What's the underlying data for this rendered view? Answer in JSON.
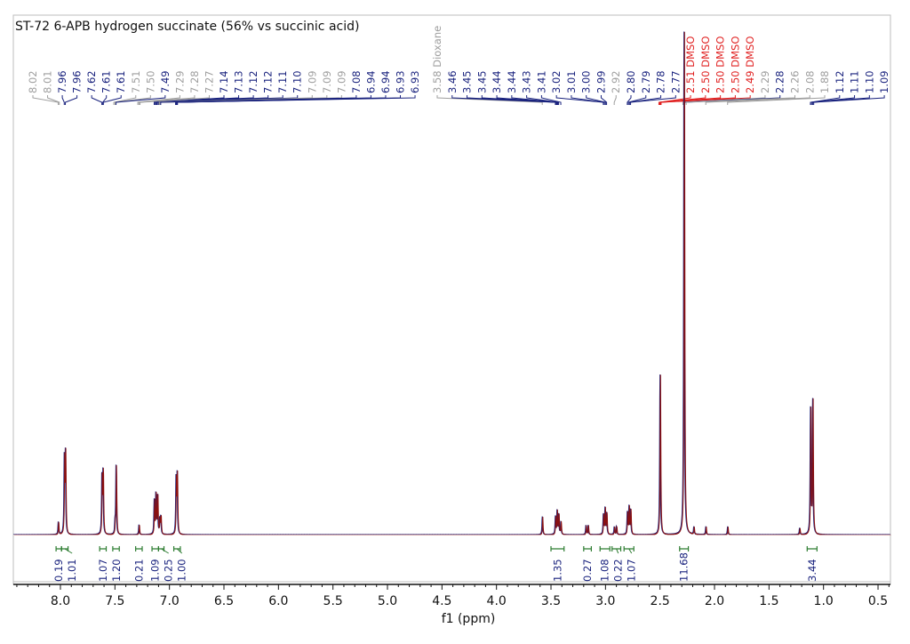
{
  "chart_data": {
    "type": "line",
    "title": "ST-72 6-APB hydrogen succinate (56% vs succinic acid)",
    "xlabel": "f1 (ppm)",
    "ylabel": "",
    "xlim": [
      8.43,
      0.36
    ],
    "x_reversed": true,
    "x_ticks": [
      "8.0",
      "7.5",
      "7.0",
      "6.5",
      "6.0",
      "5.5",
      "5.0",
      "4.5",
      "4.0",
      "3.5",
      "3.0",
      "2.5",
      "2.0",
      "1.5",
      "1.0",
      "0.5"
    ],
    "grid": false,
    "colors": {
      "spectrum": "#8b1010",
      "overlay": "#1a237e",
      "peak_label": "#1a237e",
      "peak_label_minor": "#9e9e9e",
      "solvent_label": "#e02020",
      "integral": "#2e7d32"
    },
    "peak_labels": [
      {
        "text": "8.02",
        "ppm": 8.02,
        "kind": "minor"
      },
      {
        "text": "8.01",
        "ppm": 8.01,
        "kind": "minor"
      },
      {
        "text": "7.96",
        "ppm": 7.965,
        "kind": "main"
      },
      {
        "text": "7.96",
        "ppm": 7.955,
        "kind": "main"
      },
      {
        "text": "7.62",
        "ppm": 7.62,
        "kind": "main"
      },
      {
        "text": "7.61",
        "ppm": 7.612,
        "kind": "main"
      },
      {
        "text": "7.61",
        "ppm": 7.606,
        "kind": "main"
      },
      {
        "text": "7.51",
        "ppm": 7.51,
        "kind": "minor"
      },
      {
        "text": "7.50",
        "ppm": 7.5,
        "kind": "minor"
      },
      {
        "text": "7.49",
        "ppm": 7.49,
        "kind": "main"
      },
      {
        "text": "7.29",
        "ppm": 7.29,
        "kind": "minor"
      },
      {
        "text": "7.28",
        "ppm": 7.28,
        "kind": "minor"
      },
      {
        "text": "7.27",
        "ppm": 7.27,
        "kind": "minor"
      },
      {
        "text": "7.14",
        "ppm": 7.14,
        "kind": "main"
      },
      {
        "text": "7.13",
        "ppm": 7.13,
        "kind": "main"
      },
      {
        "text": "7.12",
        "ppm": 7.123,
        "kind": "main"
      },
      {
        "text": "7.12",
        "ppm": 7.117,
        "kind": "main"
      },
      {
        "text": "7.11",
        "ppm": 7.11,
        "kind": "main"
      },
      {
        "text": "7.10",
        "ppm": 7.1,
        "kind": "main"
      },
      {
        "text": "7.09",
        "ppm": 7.094,
        "kind": "minor"
      },
      {
        "text": "7.09",
        "ppm": 7.09,
        "kind": "minor"
      },
      {
        "text": "7.09",
        "ppm": 7.086,
        "kind": "minor"
      },
      {
        "text": "7.08",
        "ppm": 7.08,
        "kind": "main"
      },
      {
        "text": "6.94",
        "ppm": 6.944,
        "kind": "main"
      },
      {
        "text": "6.94",
        "ppm": 6.938,
        "kind": "main"
      },
      {
        "text": "6.93",
        "ppm": 6.932,
        "kind": "main"
      },
      {
        "text": "6.93",
        "ppm": 6.926,
        "kind": "main"
      },
      {
        "text": "3.58 Dioxane",
        "ppm": 3.58,
        "kind": "minor"
      },
      {
        "text": "3.46",
        "ppm": 3.46,
        "kind": "main"
      },
      {
        "text": "3.45",
        "ppm": 3.453,
        "kind": "main"
      },
      {
        "text": "3.45",
        "ppm": 3.447,
        "kind": "main"
      },
      {
        "text": "3.44",
        "ppm": 3.443,
        "kind": "main"
      },
      {
        "text": "3.44",
        "ppm": 3.437,
        "kind": "main"
      },
      {
        "text": "3.43",
        "ppm": 3.43,
        "kind": "main"
      },
      {
        "text": "3.41",
        "ppm": 3.41,
        "kind": "main"
      },
      {
        "text": "3.02",
        "ppm": 3.02,
        "kind": "main"
      },
      {
        "text": "3.01",
        "ppm": 3.01,
        "kind": "main"
      },
      {
        "text": "3.00",
        "ppm": 3.0,
        "kind": "main"
      },
      {
        "text": "2.99",
        "ppm": 2.99,
        "kind": "main"
      },
      {
        "text": "2.92",
        "ppm": 2.92,
        "kind": "minor"
      },
      {
        "text": "2.80",
        "ppm": 2.8,
        "kind": "main"
      },
      {
        "text": "2.79",
        "ppm": 2.79,
        "kind": "main"
      },
      {
        "text": "2.78",
        "ppm": 2.78,
        "kind": "main"
      },
      {
        "text": "2.77",
        "ppm": 2.77,
        "kind": "main"
      },
      {
        "text": "2.51 DMSO",
        "ppm": 2.51,
        "kind": "solvent"
      },
      {
        "text": "2.50 DMSO",
        "ppm": 2.503,
        "kind": "solvent"
      },
      {
        "text": "2.50 DMSO",
        "ppm": 2.5,
        "kind": "solvent"
      },
      {
        "text": "2.50 DMSO",
        "ppm": 2.497,
        "kind": "solvent"
      },
      {
        "text": "2.49 DMSO",
        "ppm": 2.49,
        "kind": "solvent"
      },
      {
        "text": "2.29",
        "ppm": 2.29,
        "kind": "minor"
      },
      {
        "text": "2.28",
        "ppm": 2.28,
        "kind": "main"
      },
      {
        "text": "2.26",
        "ppm": 2.26,
        "kind": "minor"
      },
      {
        "text": "2.08",
        "ppm": 2.08,
        "kind": "minor"
      },
      {
        "text": "1.88",
        "ppm": 1.88,
        "kind": "minor"
      },
      {
        "text": "1.12",
        "ppm": 1.12,
        "kind": "main"
      },
      {
        "text": "1.11",
        "ppm": 1.11,
        "kind": "main"
      },
      {
        "text": "1.10",
        "ppm": 1.1,
        "kind": "main"
      },
      {
        "text": "1.09",
        "ppm": 1.09,
        "kind": "main"
      }
    ],
    "peaks": [
      {
        "ppm": 8.02,
        "height": 2.5
      },
      {
        "ppm": 7.965,
        "height": 14.5
      },
      {
        "ppm": 7.955,
        "height": 15.2
      },
      {
        "ppm": 7.62,
        "height": 11.5
      },
      {
        "ppm": 7.61,
        "height": 12.0
      },
      {
        "ppm": 7.5,
        "height": 2
      },
      {
        "ppm": 7.49,
        "height": 13.5
      },
      {
        "ppm": 7.28,
        "height": 2
      },
      {
        "ppm": 7.14,
        "height": 6.5
      },
      {
        "ppm": 7.125,
        "height": 7.9
      },
      {
        "ppm": 7.11,
        "height": 7.5
      },
      {
        "ppm": 7.09,
        "height": 3
      },
      {
        "ppm": 7.08,
        "height": 3.5
      },
      {
        "ppm": 6.94,
        "height": 10.5
      },
      {
        "ppm": 6.93,
        "height": 11.3
      },
      {
        "ppm": 3.58,
        "height": 3.6
      },
      {
        "ppm": 3.46,
        "height": 3.5
      },
      {
        "ppm": 3.445,
        "height": 4.5
      },
      {
        "ppm": 3.43,
        "height": 4.0
      },
      {
        "ppm": 3.41,
        "height": 2.5
      },
      {
        "ppm": 3.18,
        "height": 1.8
      },
      {
        "ppm": 3.16,
        "height": 1.8
      },
      {
        "ppm": 3.02,
        "height": 4.0
      },
      {
        "ppm": 3.005,
        "height": 5.0
      },
      {
        "ppm": 2.99,
        "height": 4.2
      },
      {
        "ppm": 2.92,
        "height": 1.6
      },
      {
        "ppm": 2.9,
        "height": 1.6
      },
      {
        "ppm": 2.8,
        "height": 4.5
      },
      {
        "ppm": 2.785,
        "height": 5.3
      },
      {
        "ppm": 2.77,
        "height": 4.8
      },
      {
        "ppm": 2.5,
        "height": 31.5
      },
      {
        "ppm": 2.28,
        "height": 100
      },
      {
        "ppm": 2.19,
        "height": 1.5
      },
      {
        "ppm": 2.08,
        "height": 1.6
      },
      {
        "ppm": 1.88,
        "height": 1.6
      },
      {
        "ppm": 1.22,
        "height": 1.3
      },
      {
        "ppm": 1.12,
        "height": 24
      },
      {
        "ppm": 1.1,
        "height": 26.5
      }
    ],
    "integrals": [
      {
        "ppm": [
          8.04,
          7.99
        ],
        "value": "0.19"
      },
      {
        "ppm": [
          7.99,
          7.93
        ],
        "value": "1.01"
      },
      {
        "ppm": [
          7.64,
          7.58
        ],
        "value": "1.07"
      },
      {
        "ppm": [
          7.52,
          7.46
        ],
        "value": "1.20"
      },
      {
        "ppm": [
          7.31,
          7.25
        ],
        "value": "0.21"
      },
      {
        "ppm": [
          7.16,
          7.1
        ],
        "value": "1.09"
      },
      {
        "ppm": [
          7.1,
          7.05
        ],
        "value": "0.25"
      },
      {
        "ppm": [
          6.96,
          6.9
        ],
        "value": "1.00"
      },
      {
        "ppm": [
          3.5,
          3.38
        ],
        "value": "1.35"
      },
      {
        "ppm": [
          3.2,
          3.13
        ],
        "value": "0.27"
      },
      {
        "ppm": [
          3.05,
          2.96
        ],
        "value": "1.08"
      },
      {
        "ppm": [
          2.94,
          2.86
        ],
        "value": "0.22"
      },
      {
        "ppm": [
          2.83,
          2.74
        ],
        "value": "1.07"
      },
      {
        "ppm": [
          2.32,
          2.24
        ],
        "value": "11.68"
      },
      {
        "ppm": [
          1.15,
          1.06
        ],
        "value": "3.44"
      }
    ]
  }
}
